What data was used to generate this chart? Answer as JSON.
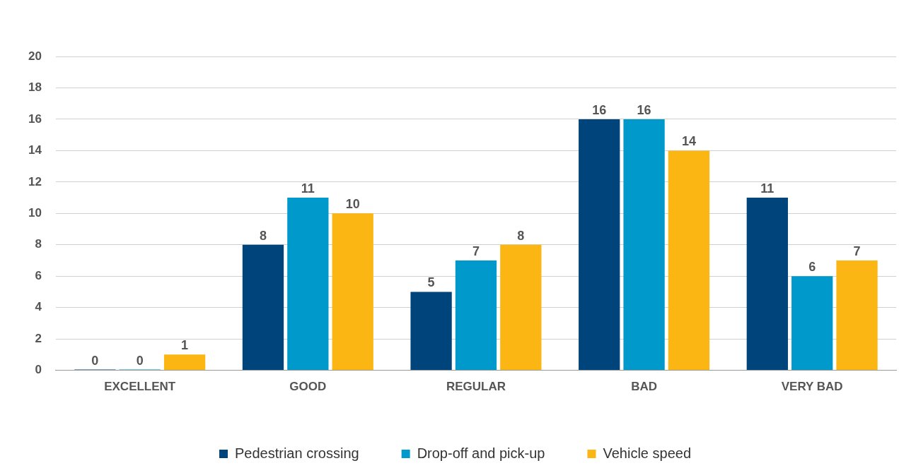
{
  "chart_data": {
    "type": "bar",
    "categories": [
      "EXCELLENT",
      "GOOD",
      "REGULAR",
      "BAD",
      "VERY BAD"
    ],
    "series": [
      {
        "name": "Pedestrian crossing",
        "color": "#00447c",
        "values": [
          0,
          8,
          5,
          16,
          11
        ]
      },
      {
        "name": "Drop-off and pick-up",
        "color": "#0099cc",
        "values": [
          0,
          11,
          7,
          16,
          6
        ]
      },
      {
        "name": "Vehicle speed",
        "color": "#fbb614",
        "values": [
          1,
          10,
          8,
          14,
          7
        ]
      }
    ],
    "ylim": [
      0,
      20
    ],
    "yticks": [
      0,
      2,
      4,
      6,
      8,
      10,
      12,
      14,
      16,
      18,
      20
    ],
    "grid": "y",
    "legend": "bottom",
    "data_labels": true
  }
}
